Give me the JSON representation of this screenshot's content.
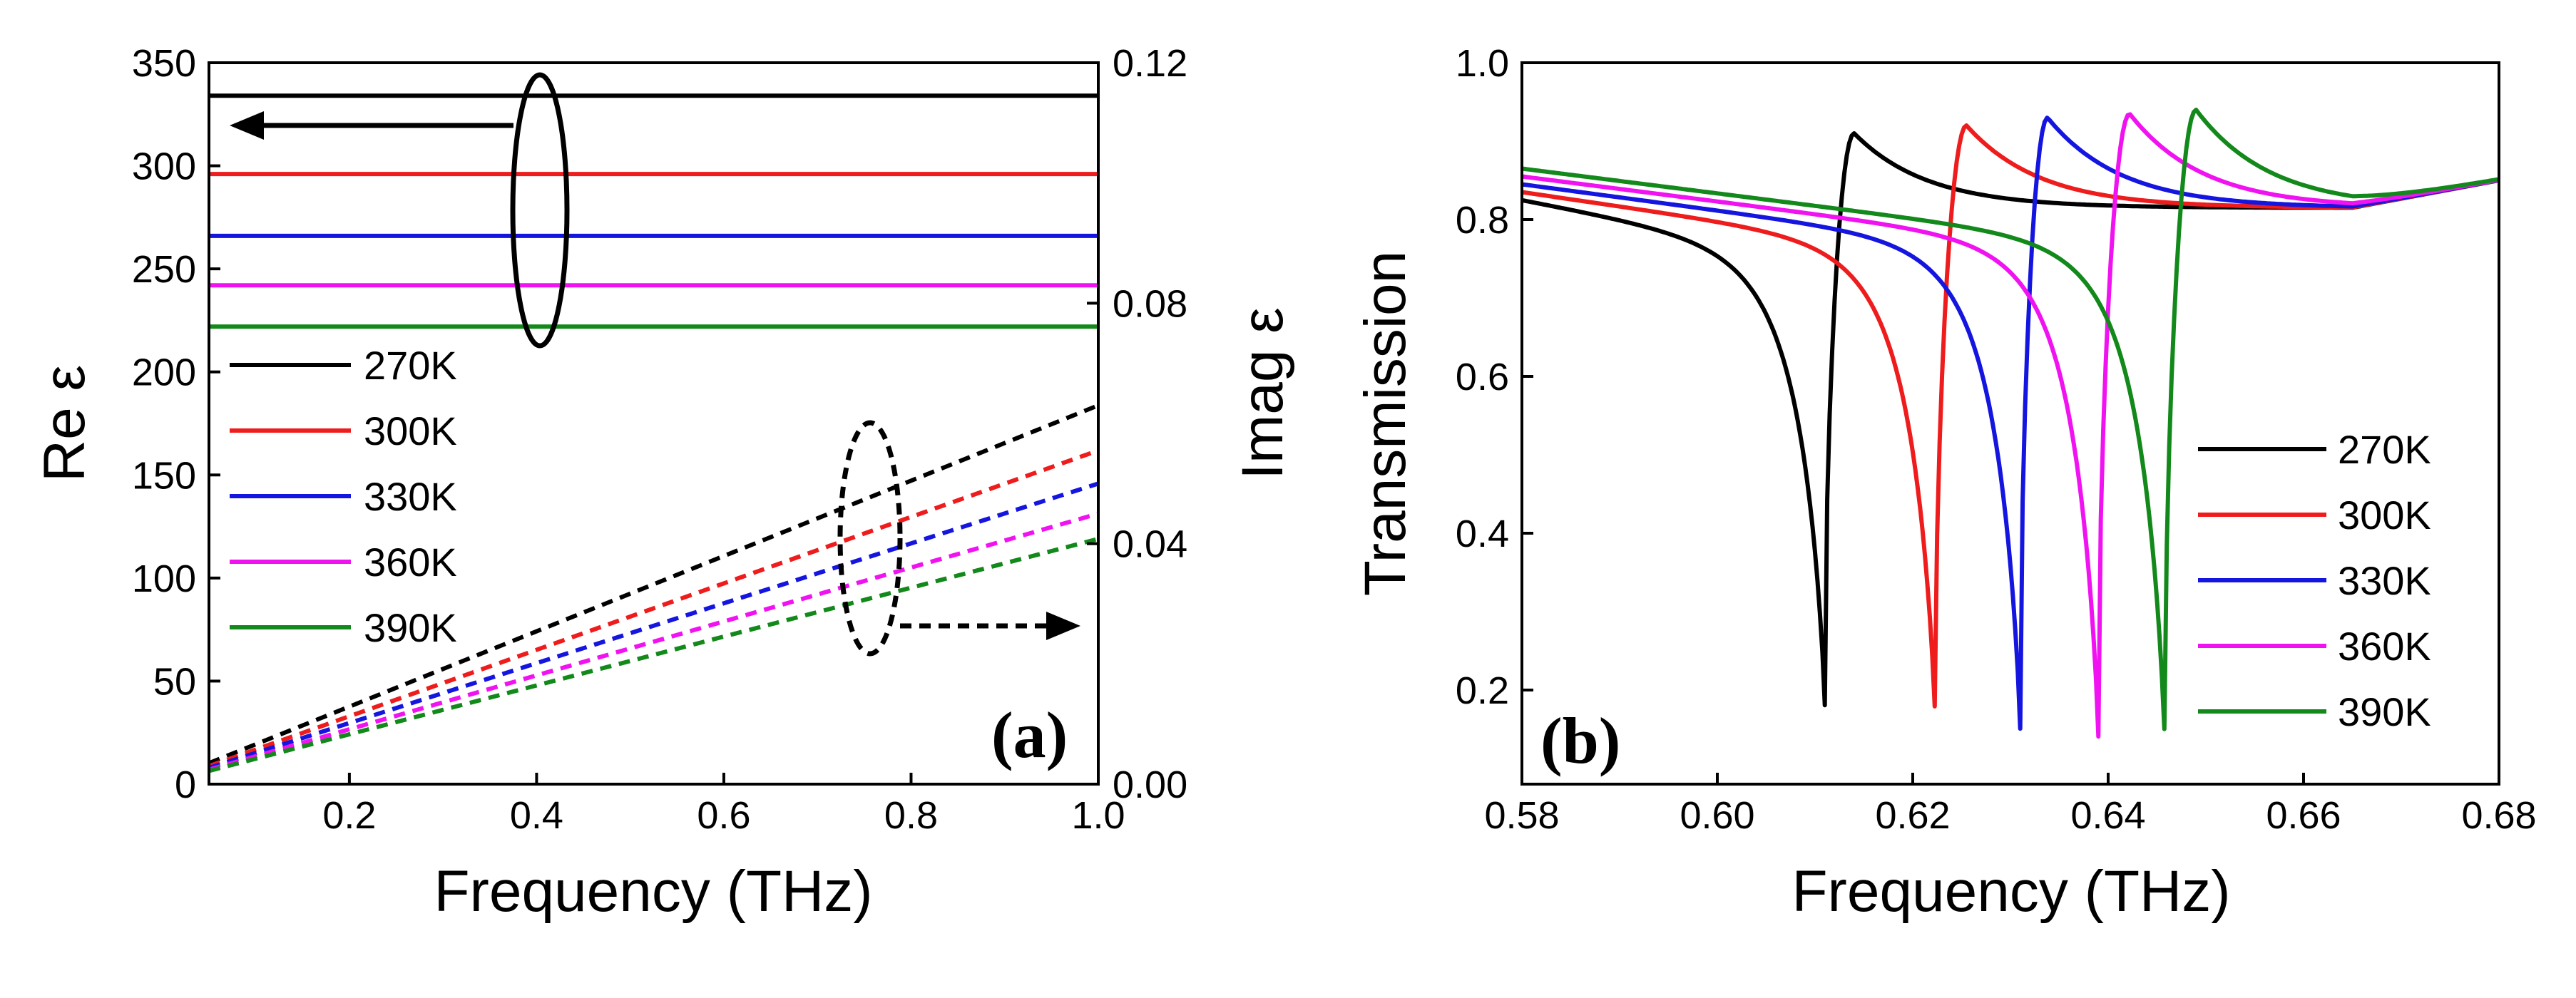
{
  "chart_data": [
    {
      "type": "line",
      "panel_label": "(a)",
      "xlabel": "Frequency (THz)",
      "ylabel_left": "Re ε",
      "ylabel_right": "Imag ε",
      "xlim": [
        0.05,
        1.0
      ],
      "ylim_left": [
        0,
        350
      ],
      "ylim_right": [
        0.0,
        0.12
      ],
      "xticks": [
        "0.2",
        "0.4",
        "0.6",
        "0.8",
        "1.0"
      ],
      "yticks_left": [
        "0",
        "50",
        "100",
        "150",
        "200",
        "250",
        "300",
        "350"
      ],
      "yticks_right": [
        "0.00",
        "0.04",
        "0.08",
        "0.12"
      ],
      "legend": {
        "placement": "center-left"
      },
      "annotations": [
        "ellipse around solid lines with arrow pointing to left axis",
        "dashed ellipse around dashed lines with dashed arrow pointing to right axis"
      ],
      "series": [
        {
          "name": "270K",
          "color": "#000000",
          "re_eps": 334,
          "imag_eps_x": [
            0.05,
            1.0
          ],
          "imag_eps_y": [
            0.0035,
            0.063
          ]
        },
        {
          "name": "300K",
          "color": "#ee1c1c",
          "re_eps": 296,
          "imag_eps_x": [
            0.05,
            1.0
          ],
          "imag_eps_y": [
            0.003,
            0.0555
          ]
        },
        {
          "name": "330K",
          "color": "#1515e0",
          "re_eps": 266,
          "imag_eps_x": [
            0.05,
            1.0
          ],
          "imag_eps_y": [
            0.0027,
            0.05
          ]
        },
        {
          "name": "360K",
          "color": "#f012f0",
          "re_eps": 242,
          "imag_eps_x": [
            0.05,
            1.0
          ],
          "imag_eps_y": [
            0.0024,
            0.045
          ]
        },
        {
          "name": "390K",
          "color": "#12891a",
          "re_eps": 222,
          "imag_eps_x": [
            0.05,
            1.0
          ],
          "imag_eps_y": [
            0.0022,
            0.0408
          ]
        }
      ]
    },
    {
      "type": "line",
      "panel_label": "(b)",
      "xlabel": "Frequency (THz)",
      "ylabel": "Transmission",
      "xlim": [
        0.58,
        0.68
      ],
      "ylim": [
        0.08,
        1.0
      ],
      "xticks": [
        "0.58",
        "0.60",
        "0.62",
        "0.64",
        "0.66",
        "0.68"
      ],
      "yticks": [
        "0.2",
        "0.4",
        "0.6",
        "0.8",
        "1.0"
      ],
      "legend": {
        "placement": "bottom-right"
      },
      "series": [
        {
          "name": "270K",
          "color": "#000000",
          "f0": 0.611,
          "peak": 0.614,
          "tmin": 0.18,
          "tmax": 0.91,
          "start": 0.825
        },
        {
          "name": "300K",
          "color": "#ee1c1c",
          "f0": 0.6223,
          "peak": 0.6255,
          "tmin": 0.16,
          "tmax": 0.92,
          "start": 0.835
        },
        {
          "name": "330K",
          "color": "#1515e0",
          "f0": 0.631,
          "peak": 0.6338,
          "tmin": 0.15,
          "tmax": 0.93,
          "start": 0.845
        },
        {
          "name": "360K",
          "color": "#f012f0",
          "f0": 0.639,
          "peak": 0.6422,
          "tmin": 0.14,
          "tmax": 0.935,
          "start": 0.855
        },
        {
          "name": "390K",
          "color": "#12891a",
          "f0": 0.6458,
          "peak": 0.649,
          "tmin": 0.13,
          "tmax": 0.94,
          "start": 0.865
        }
      ]
    }
  ]
}
